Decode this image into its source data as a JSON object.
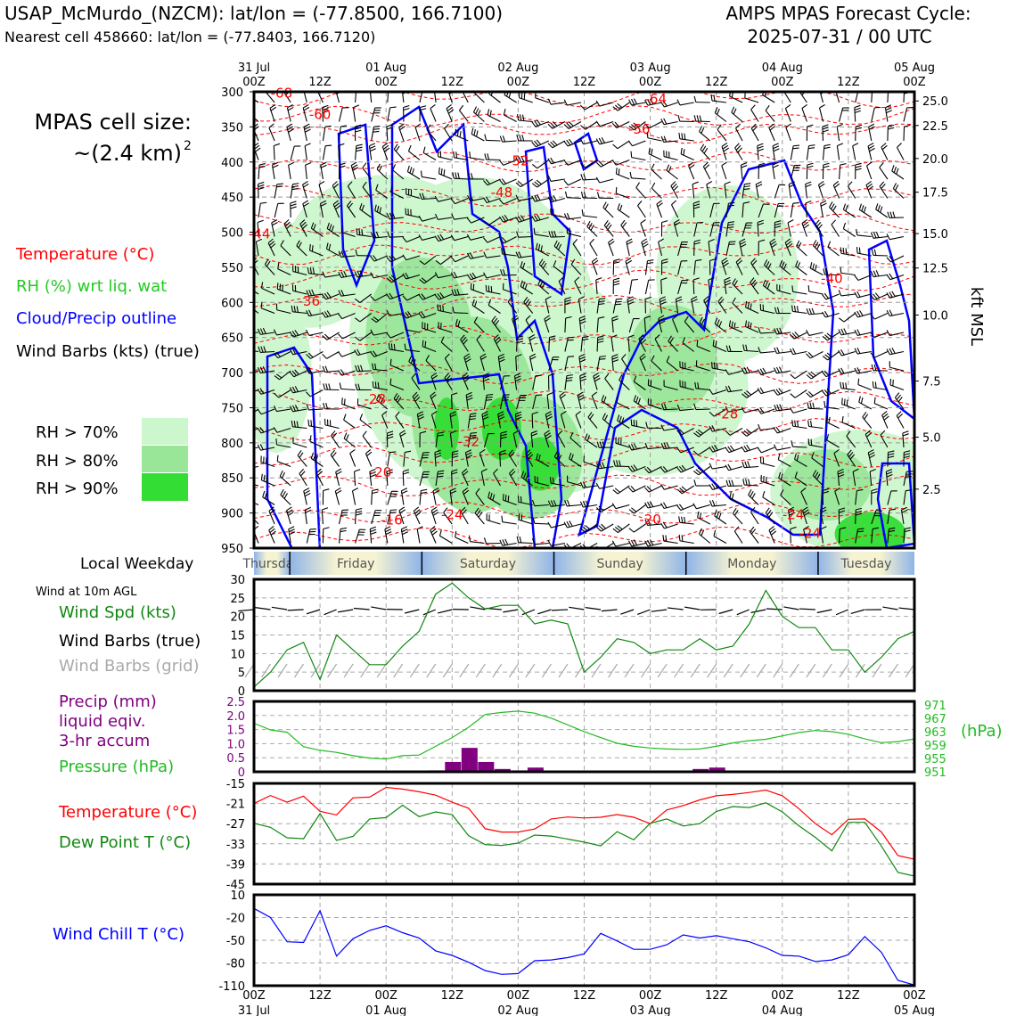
{
  "header": {
    "station": "USAP_McMurdo_(NZCM): lat/lon = (-77.8500, 166.7100)",
    "nearest": "Nearest cell 458660: lat/lon = (-77.8403, 166.7120)",
    "cycle_title": "AMPS MPAS Forecast Cycle:",
    "cycle_time": "2025-07-31 / 00 UTC"
  },
  "cell_size": {
    "line1": "MPAS cell size:",
    "line2": "~(2.4 km)",
    "sup": "2"
  },
  "legend": {
    "temperature": "Temperature (°C)",
    "rh": "RH (%) wrt liq. wat",
    "cloud": "Cloud/Precip outline",
    "barbs": "Wind Barbs (kts) (true)",
    "rh70": "RH > 70%",
    "rh80": "RH > 80%",
    "rh90": "RH > 90%"
  },
  "colors": {
    "temp": "#ff0000",
    "rh": "#22cc22",
    "cloud": "#0000ff",
    "rh70": "#ccf7cc",
    "rh80": "#99e699",
    "rh90": "#33dd33",
    "precip": "#800080",
    "pressure": "#22bb22",
    "dewpoint": "#118811",
    "windchill": "#0000ff",
    "grid_barbs": "#aaaaaa"
  },
  "time_axis": {
    "top_ticks": [
      {
        "day": "31 Jul",
        "hour": "00Z"
      },
      {
        "day": "",
        "hour": "12Z"
      },
      {
        "day": "01 Aug",
        "hour": "00Z"
      },
      {
        "day": "",
        "hour": "12Z"
      },
      {
        "day": "02 Aug",
        "hour": "00Z"
      },
      {
        "day": "",
        "hour": "12Z"
      },
      {
        "day": "03 Aug",
        "hour": "00Z"
      },
      {
        "day": "",
        "hour": "12Z"
      },
      {
        "day": "04 Aug",
        "hour": "00Z"
      },
      {
        "day": "",
        "hour": "12Z"
      },
      {
        "day": "05 Aug",
        "hour": "00Z"
      }
    ]
  },
  "weekday": {
    "label": "Local Weekday",
    "days": [
      "Thursday",
      "Friday",
      "Saturday",
      "Sunday",
      "Monday",
      "Tuesday"
    ]
  },
  "panel_labels": {
    "wind_title": "Wind at 10m AGL",
    "wind_spd": "Wind Spd (kts)",
    "wind_barbs": "Wind Barbs (true)",
    "wind_barbs_grid": "Wind Barbs (grid)",
    "precip1": "Precip (mm)",
    "precip2": "liquid eqiv.",
    "precip3": "3-hr accum",
    "pressure": "Pressure (hPa)",
    "hpa": "(hPa)",
    "temp": "Temperature (°C)",
    "dew": "Dew Point T (°C)",
    "windchill": "Wind Chill T (°C)",
    "kft": "kft MSL"
  },
  "chart_data": [
    {
      "type": "heatmap",
      "name": "time-height cross section",
      "x_hours": [
        0,
        120
      ],
      "y_pressure_hpa": [
        300,
        950
      ],
      "yticks": [
        "300",
        "350",
        "400",
        "450",
        "500",
        "550",
        "600",
        "650",
        "700",
        "750",
        "800",
        "850",
        "900",
        "950"
      ],
      "right_ticks": [
        {
          "p": 313,
          "label": "25.0"
        },
        {
          "p": 348,
          "label": "22.5"
        },
        {
          "p": 395,
          "label": "20.0"
        },
        {
          "p": 443,
          "label": "17.5"
        },
        {
          "p": 502,
          "label": "15.0"
        },
        {
          "p": 551,
          "label": "12.5"
        },
        {
          "p": 618,
          "label": "10.0"
        },
        {
          "p": 712,
          "label": "7.5"
        },
        {
          "p": 792,
          "label": "5.0"
        },
        {
          "p": 866,
          "label": "2.5"
        }
      ],
      "temp_contour_labels": [
        {
          "t": 5,
          "p": 306,
          "v": "-68"
        },
        {
          "t": 73,
          "p": 314,
          "v": "-64"
        },
        {
          "t": 12,
          "p": 336,
          "v": "-60"
        },
        {
          "t": 70,
          "p": 357,
          "v": "-56"
        },
        {
          "t": 48,
          "p": 402,
          "v": "-52"
        },
        {
          "t": 45,
          "p": 447,
          "v": "-48"
        },
        {
          "t": 1,
          "p": 506,
          "v": "-44"
        },
        {
          "t": 105,
          "p": 570,
          "v": "-40"
        },
        {
          "t": 10,
          "p": 602,
          "v": "-36"
        },
        {
          "t": 22,
          "p": 742,
          "v": "-28"
        },
        {
          "t": 86,
          "p": 763,
          "v": "-28"
        },
        {
          "t": 39,
          "p": 802,
          "v": "-32"
        },
        {
          "t": 23,
          "p": 846,
          "v": "-20"
        },
        {
          "t": 25,
          "p": 914,
          "v": "-16"
        },
        {
          "t": 36,
          "p": 906,
          "v": "-24"
        },
        {
          "t": 72,
          "p": 913,
          "v": "-20"
        },
        {
          "t": 98,
          "p": 906,
          "v": "-24"
        },
        {
          "t": 101,
          "p": 933,
          "v": "-24"
        }
      ]
    },
    {
      "type": "line",
      "name": "wind speed 10m",
      "x_hours": [
        0,
        3,
        6,
        9,
        12,
        15,
        18,
        21,
        24,
        27,
        30,
        33,
        36,
        39,
        42,
        45,
        48,
        51,
        54,
        57,
        60,
        63,
        66,
        69,
        72,
        75,
        78,
        81,
        84,
        87,
        90,
        93,
        96,
        99,
        102,
        105,
        108,
        111,
        114,
        117,
        120
      ],
      "values": [
        1,
        5,
        11,
        13,
        3,
        15,
        11,
        7,
        7,
        12,
        16,
        26,
        29,
        25,
        22,
        23,
        23,
        18,
        19,
        18,
        5,
        9,
        14,
        13,
        10,
        11,
        11,
        14,
        11,
        12,
        18,
        27,
        20,
        17,
        17,
        11,
        11,
        5,
        9,
        14,
        16
      ],
      "ylim": [
        0,
        30
      ],
      "yticks": [
        "0",
        "5",
        "10",
        "15",
        "20",
        "25",
        "30"
      ]
    },
    {
      "type": "bar",
      "name": "precip 3-hr accum",
      "x_hours": [
        33,
        36,
        39,
        42,
        45,
        48,
        51,
        81,
        84
      ],
      "values": [
        0.05,
        0.35,
        0.85,
        0.35,
        0.1,
        0.05,
        0.15,
        0.1,
        0.15
      ],
      "ylim": [
        0,
        2.5
      ],
      "yticks": [
        "0",
        "0.5",
        "1.0",
        "1.5",
        "2.0",
        "2.5"
      ]
    },
    {
      "type": "line",
      "name": "pressure",
      "x_hours": [
        0,
        3,
        6,
        9,
        12,
        15,
        18,
        21,
        24,
        27,
        30,
        33,
        36,
        39,
        42,
        45,
        48,
        51,
        54,
        57,
        60,
        63,
        66,
        69,
        72,
        75,
        78,
        81,
        84,
        87,
        90,
        93,
        96,
        99,
        102,
        105,
        108,
        111,
        114,
        117,
        120
      ],
      "values": [
        965.5,
        963.5,
        962.8,
        958.5,
        957.4,
        956.8,
        955.8,
        955.1,
        954.8,
        955.8,
        956,
        958.6,
        961.2,
        964.3,
        968.1,
        968.7,
        969.1,
        968.5,
        967,
        965,
        963,
        961.2,
        959.5,
        958.6,
        958.1,
        957.8,
        957.7,
        957.8,
        958.6,
        959.6,
        960.3,
        960.7,
        961.7,
        962.7,
        963.3,
        963,
        962.2,
        960.8,
        959.7,
        960,
        960.8
      ],
      "ylim": [
        951,
        972
      ],
      "right_ticks": [
        "951",
        "955",
        "959",
        "963",
        "967",
        "971"
      ]
    },
    {
      "type": "line",
      "name": "temperature and dew point",
      "x_hours": [
        0,
        3,
        6,
        9,
        12,
        15,
        18,
        21,
        24,
        27,
        30,
        33,
        36,
        39,
        42,
        45,
        48,
        51,
        54,
        57,
        60,
        63,
        66,
        69,
        72,
        75,
        78,
        81,
        84,
        87,
        90,
        93,
        96,
        99,
        102,
        105,
        108,
        111,
        114,
        117,
        120
      ],
      "series": [
        {
          "name": "Temperature (°C)",
          "values": [
            -21,
            -18.6,
            -20.6,
            -18.8,
            -23.3,
            -24.4,
            -19.3,
            -19.1,
            -16.2,
            -16.7,
            -17.5,
            -18.5,
            -20.6,
            -22.4,
            -28.5,
            -29.5,
            -29.5,
            -28.6,
            -25.6,
            -25,
            -25.3,
            -25.1,
            -24.3,
            -25.1,
            -27,
            -22.9,
            -21.6,
            -19.9,
            -18.7,
            -18.3,
            -17.7,
            -17,
            -18.7,
            -22.5,
            -27,
            -30.3,
            -25.7,
            -25.6,
            -29.5,
            -36.5,
            -37.6
          ]
        },
        {
          "name": "Dew Point T (°C)",
          "values": [
            -26.9,
            -28.1,
            -31.2,
            -31.5,
            -24,
            -32,
            -30.8,
            -25.6,
            -25.2,
            -21.5,
            -24.9,
            -23.5,
            -24.3,
            -30.6,
            -33.2,
            -33.5,
            -32.8,
            -30.4,
            -30.7,
            -31.6,
            -32.5,
            -33.6,
            -29.4,
            -31.8,
            -26.9,
            -25.6,
            -27.7,
            -27,
            -23.4,
            -21.9,
            -22.2,
            -20.8,
            -23.5,
            -27.6,
            -31.1,
            -35.1,
            -26.6,
            -26.6,
            -33.7,
            -41.5,
            -42.6
          ]
        }
      ],
      "ylim": [
        -45,
        -15
      ],
      "yticks": [
        "-15",
        "-21",
        "-27",
        "-33",
        "-39",
        "-45"
      ]
    },
    {
      "type": "line",
      "name": "wind chill",
      "x_hours": [
        0,
        3,
        6,
        9,
        12,
        15,
        18,
        21,
        24,
        27,
        30,
        33,
        36,
        39,
        42,
        45,
        48,
        51,
        54,
        57,
        60,
        63,
        66,
        69,
        72,
        75,
        78,
        81,
        84,
        87,
        90,
        93,
        96,
        99,
        102,
        105,
        108,
        111,
        114,
        117,
        120
      ],
      "values": [
        -8,
        -20,
        -52,
        -53,
        -11,
        -71,
        -48,
        -37,
        -31,
        -40,
        -47,
        -64,
        -70,
        -79,
        -90,
        -95,
        -94,
        -77,
        -76,
        -73,
        -68,
        -41,
        -51,
        -62,
        -62,
        -56,
        -43,
        -47,
        -44,
        -48,
        -52,
        -60,
        -70,
        -71,
        -78,
        -76,
        -69,
        -45,
        -66,
        -103,
        -109
      ],
      "ylim": [
        -110,
        10
      ],
      "yticks": [
        "10",
        "-20",
        "-50",
        "-80",
        "-110"
      ]
    }
  ]
}
